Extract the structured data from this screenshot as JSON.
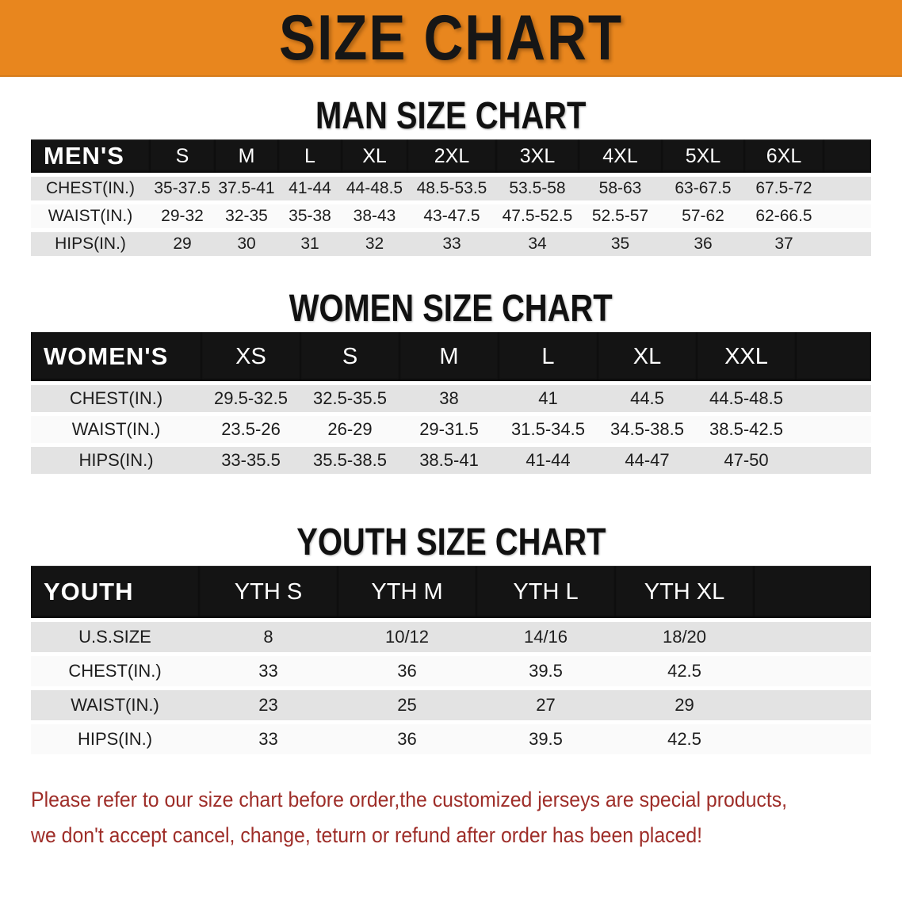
{
  "banner": {
    "title": "SIZE CHART"
  },
  "colors": {
    "accent_orange": "#E8861E",
    "header_black": "#141414",
    "row_gray": "#E3E3E3",
    "row_white": "#FAFAFA",
    "disclaimer_red": "#9E2D28"
  },
  "sections": [
    {
      "title": "MAN SIZE CHART",
      "header_label": "MEN'S",
      "columns": [
        "S",
        "M",
        "L",
        "XL",
        "2XL",
        "3XL",
        "4XL",
        "5XL",
        "6XL"
      ],
      "rows": [
        {
          "label": "CHEST(IN.)",
          "values": [
            "35-37.5",
            "37.5-41",
            "41-44",
            "44-48.5",
            "48.5-53.5",
            "53.5-58",
            "58-63",
            "63-67.5",
            "67.5-72"
          ]
        },
        {
          "label": "WAIST(IN.)",
          "values": [
            "29-32",
            "32-35",
            "35-38",
            "38-43",
            "43-47.5",
            "47.5-52.5",
            "52.5-57",
            "57-62",
            "62-66.5"
          ]
        },
        {
          "label": "HIPS(IN.)",
          "values": [
            "29",
            "30",
            "31",
            "32",
            "33",
            "34",
            "35",
            "36",
            "37"
          ]
        }
      ]
    },
    {
      "title": "WOMEN SIZE CHART",
      "header_label": "WOMEN'S",
      "columns": [
        "XS",
        "S",
        "M",
        "L",
        "XL",
        "XXL"
      ],
      "rows": [
        {
          "label": "CHEST(IN.)",
          "values": [
            "29.5-32.5",
            "32.5-35.5",
            "38",
            "41",
            "44.5",
            "44.5-48.5"
          ]
        },
        {
          "label": "WAIST(IN.)",
          "values": [
            "23.5-26",
            "26-29",
            "29-31.5",
            "31.5-34.5",
            "34.5-38.5",
            "38.5-42.5"
          ]
        },
        {
          "label": "HIPS(IN.)",
          "values": [
            "33-35.5",
            "35.5-38.5",
            "38.5-41",
            "41-44",
            "44-47",
            "47-50"
          ]
        }
      ]
    },
    {
      "title": "YOUTH SIZE CHART",
      "header_label": "YOUTH",
      "columns": [
        "YTH S",
        "YTH M",
        "YTH L",
        "YTH XL"
      ],
      "rows": [
        {
          "label": "U.S.SIZE",
          "values": [
            "8",
            "10/12",
            "14/16",
            "18/20"
          ]
        },
        {
          "label": "CHEST(IN.)",
          "values": [
            "33",
            "36",
            "39.5",
            "42.5"
          ]
        },
        {
          "label": "WAIST(IN.)",
          "values": [
            "23",
            "25",
            "27",
            "29"
          ]
        },
        {
          "label": "HIPS(IN.)",
          "values": [
            "33",
            "36",
            "39.5",
            "42.5"
          ]
        }
      ]
    }
  ],
  "disclaimer": {
    "line1": "Please refer to our size chart before order,the customized jerseys are special products,",
    "line2": "we don't accept cancel, change, teturn or refund after order has been placed!"
  }
}
